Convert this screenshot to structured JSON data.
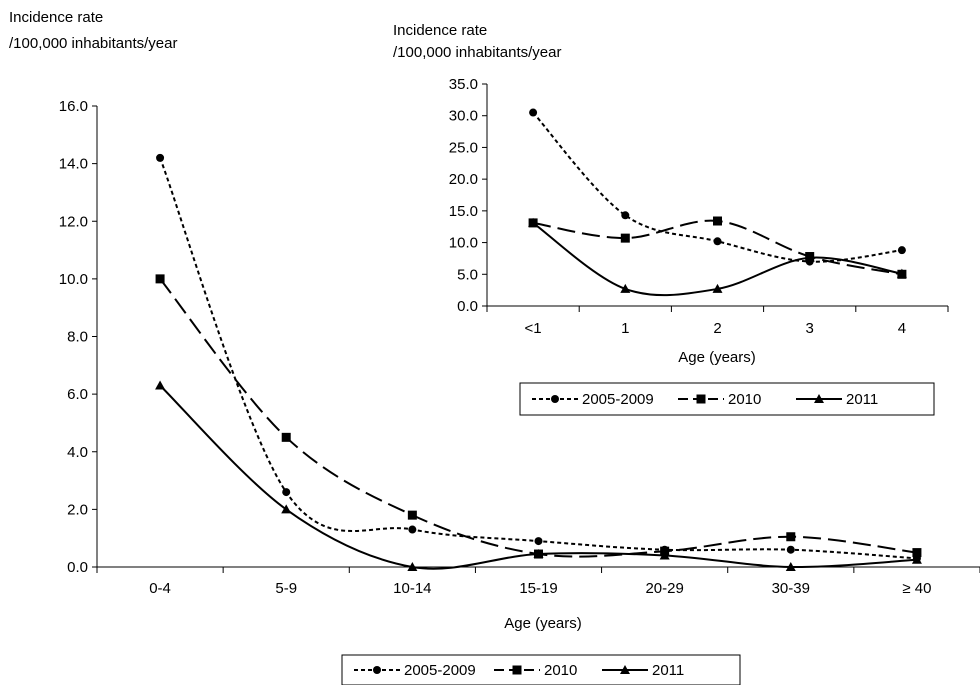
{
  "chart_data": [
    {
      "type": "line",
      "ylabel_lines": [
        "Incidence rate",
        "/100,000 inhabitants/year"
      ],
      "xlabel": "Age (years)",
      "categories": [
        "0-4",
        "5-9",
        "10-14",
        "15-19",
        "20-29",
        "30-39",
        "≥ 40"
      ],
      "ylim": [
        0,
        16
      ],
      "yticks": [
        "0.0",
        "2.0",
        "4.0",
        "6.0",
        "8.0",
        "10.0",
        "12.0",
        "14.0",
        "16.0"
      ],
      "grid": false,
      "legend_position": "bottom",
      "series": [
        {
          "name": "2005-2009",
          "values": [
            14.2,
            2.6,
            1.3,
            0.9,
            0.6,
            0.6,
            0.3
          ]
        },
        {
          "name": "2010",
          "values": [
            10.0,
            4.5,
            1.8,
            0.45,
            0.55,
            1.05,
            0.5
          ]
        },
        {
          "name": "2011",
          "values": [
            6.3,
            2.0,
            0.0,
            0.45,
            0.4,
            0.0,
            0.25
          ]
        }
      ]
    },
    {
      "type": "line",
      "ylabel_lines": [
        "Incidence rate",
        "/100,000 inhabitants/year"
      ],
      "xlabel": "Age (years)",
      "categories": [
        "<1",
        "1",
        "2",
        "3",
        "4"
      ],
      "ylim": [
        0,
        35
      ],
      "yticks": [
        "0.0",
        "5.0",
        "10.0",
        "15.0",
        "20.0",
        "25.0",
        "30.0",
        "35.0"
      ],
      "grid": false,
      "legend_position": "bottom",
      "series": [
        {
          "name": "2005-2009",
          "values": [
            30.5,
            14.3,
            10.2,
            7.0,
            8.8
          ]
        },
        {
          "name": "2010",
          "values": [
            13.1,
            10.7,
            13.4,
            7.8,
            5.0
          ]
        },
        {
          "name": "2011",
          "values": [
            13.1,
            2.7,
            2.7,
            7.6,
            5.1
          ]
        }
      ]
    }
  ]
}
